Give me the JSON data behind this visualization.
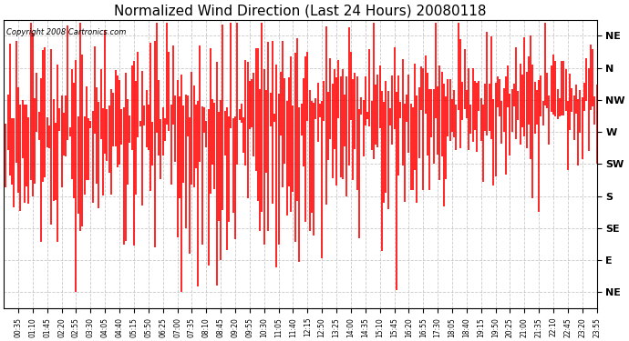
{
  "title": "Normalized Wind Direction (Last 24 Hours) 20080118",
  "copyright": "Copyright 2008 Cartronics.com",
  "y_labels": [
    "NE",
    "N",
    "NW",
    "W",
    "SW",
    "S",
    "SE",
    "E",
    "NE"
  ],
  "y_values": [
    9,
    8,
    7,
    6,
    5,
    4,
    3,
    2,
    1
  ],
  "y_min": 0.5,
  "y_max": 9.5,
  "line_color": "#ff0000",
  "bg_color": "#ffffff",
  "grid_color": "#bbbbbb",
  "title_fontsize": 11,
  "seed": 42
}
